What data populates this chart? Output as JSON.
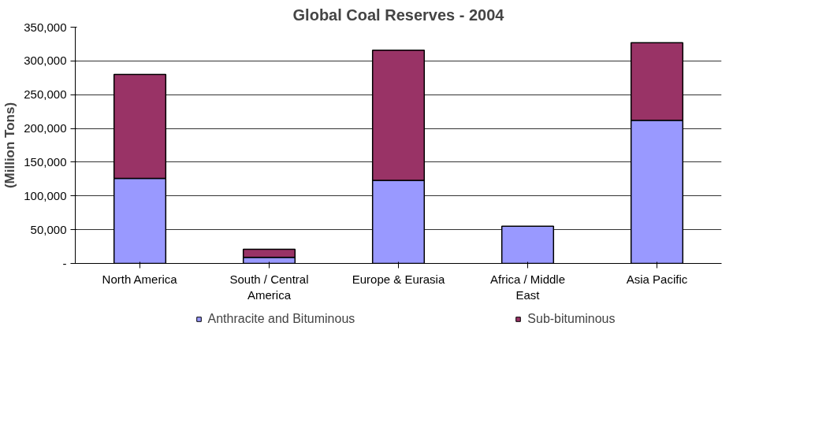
{
  "chart_data": {
    "type": "bar",
    "title": "Global Coal Reserves - 2004",
    "ylabel": "(Million Tons)",
    "categories": [
      "North America",
      "South / Central America",
      "Europe & Eurasia",
      "Africa / Middle East",
      "Asia Pacific"
    ],
    "stacked": true,
    "series": [
      {
        "name": "Anthracite and Bituminous",
        "color": "#9999ff",
        "values": [
          126000,
          9000,
          123000,
          55000,
          212000
        ]
      },
      {
        "name": "Sub-bituminous",
        "color": "#993366",
        "values": [
          154000,
          12000,
          193000,
          null,
          115000
        ]
      }
    ],
    "ylim": [
      0,
      350000
    ],
    "yticks": [
      {
        "value": 0,
        "label": "-"
      },
      {
        "value": 50000,
        "label": "50,000"
      },
      {
        "value": 100000,
        "label": "100,000"
      },
      {
        "value": 150000,
        "label": "150,000"
      },
      {
        "value": 200000,
        "label": "200,000"
      },
      {
        "value": 250000,
        "label": "250,000"
      },
      {
        "value": 300000,
        "label": "300,000"
      },
      {
        "value": 350000,
        "label": "350,000"
      }
    ],
    "grid": "y",
    "legend": "bottom"
  }
}
